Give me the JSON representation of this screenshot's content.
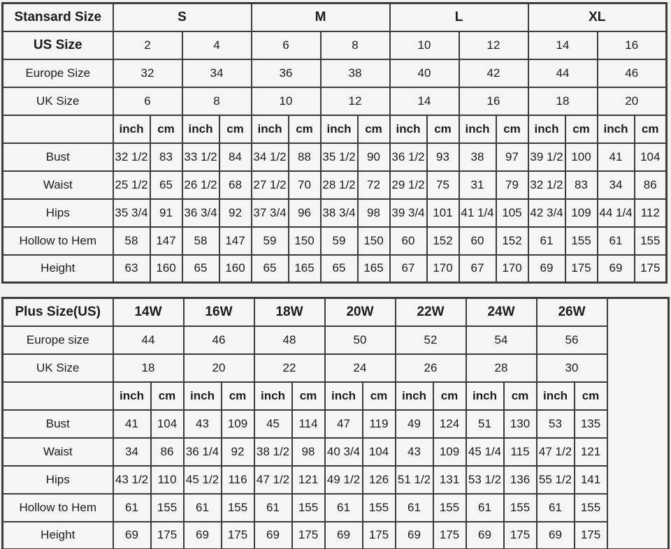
{
  "colors": {
    "border": "#3d3c3a",
    "paper": "#f1f0ed",
    "text": "#1c1c1c"
  },
  "standard_table": {
    "corner_label": "Stansard Size",
    "size_groups": [
      "S",
      "M",
      "L",
      "XL"
    ],
    "header_rows": [
      {
        "label": "US Size",
        "values": [
          "2",
          "4",
          "6",
          "8",
          "10",
          "12",
          "14",
          "16"
        ]
      },
      {
        "label": "Europe Size",
        "values": [
          "32",
          "34",
          "36",
          "38",
          "40",
          "42",
          "44",
          "46"
        ]
      },
      {
        "label": "UK Size",
        "values": [
          "6",
          "8",
          "10",
          "12",
          "14",
          "16",
          "18",
          "20"
        ]
      }
    ],
    "unit_row": {
      "inch": "inch",
      "cm": "cm"
    },
    "measure_rows": [
      {
        "label": "Bust",
        "pairs": [
          [
            "32 1/2",
            "83"
          ],
          [
            "33 1/2",
            "84"
          ],
          [
            "34 1/2",
            "88"
          ],
          [
            "35 1/2",
            "90"
          ],
          [
            "36 1/2",
            "93"
          ],
          [
            "38",
            "97"
          ],
          [
            "39 1/2",
            "100"
          ],
          [
            "41",
            "104"
          ]
        ]
      },
      {
        "label": "Waist",
        "pairs": [
          [
            "25 1/2",
            "65"
          ],
          [
            "26 1/2",
            "68"
          ],
          [
            "27 1/2",
            "70"
          ],
          [
            "28 1/2",
            "72"
          ],
          [
            "29 1/2",
            "75"
          ],
          [
            "31",
            "79"
          ],
          [
            "32 1/2",
            "83"
          ],
          [
            "34",
            "86"
          ]
        ]
      },
      {
        "label": "Hips",
        "pairs": [
          [
            "35 3/4",
            "91"
          ],
          [
            "36 3/4",
            "92"
          ],
          [
            "37 3/4",
            "96"
          ],
          [
            "38 3/4",
            "98"
          ],
          [
            "39 3/4",
            "101"
          ],
          [
            "41 1/4",
            "105"
          ],
          [
            "42 3/4",
            "109"
          ],
          [
            "44 1/4",
            "112"
          ]
        ]
      },
      {
        "label": "Hollow to Hem",
        "pairs": [
          [
            "58",
            "147"
          ],
          [
            "58",
            "147"
          ],
          [
            "59",
            "150"
          ],
          [
            "59",
            "150"
          ],
          [
            "60",
            "152"
          ],
          [
            "60",
            "152"
          ],
          [
            "61",
            "155"
          ],
          [
            "61",
            "155"
          ]
        ]
      },
      {
        "label": "Height",
        "pairs": [
          [
            "63",
            "160"
          ],
          [
            "65",
            "160"
          ],
          [
            "65",
            "165"
          ],
          [
            "65",
            "165"
          ],
          [
            "67",
            "170"
          ],
          [
            "67",
            "170"
          ],
          [
            "69",
            "175"
          ],
          [
            "69",
            "175"
          ]
        ]
      }
    ]
  },
  "plus_table": {
    "corner_label": "Plus Size(US)",
    "sizes": [
      "14W",
      "16W",
      "18W",
      "20W",
      "22W",
      "24W",
      "26W"
    ],
    "header_rows": [
      {
        "label": "Europe size",
        "values": [
          "44",
          "46",
          "48",
          "50",
          "52",
          "54",
          "56"
        ]
      },
      {
        "label": "UK Size",
        "values": [
          "18",
          "20",
          "22",
          "24",
          "26",
          "28",
          "30"
        ]
      }
    ],
    "unit_row": {
      "inch": "inch",
      "cm": "cm"
    },
    "measure_rows": [
      {
        "label": "Bust",
        "pairs": [
          [
            "41",
            "104"
          ],
          [
            "43",
            "109"
          ],
          [
            "45",
            "114"
          ],
          [
            "47",
            "119"
          ],
          [
            "49",
            "124"
          ],
          [
            "51",
            "130"
          ],
          [
            "53",
            "135"
          ]
        ]
      },
      {
        "label": "Waist",
        "pairs": [
          [
            "34",
            "86"
          ],
          [
            "36 1/4",
            "92"
          ],
          [
            "38 1/2",
            "98"
          ],
          [
            "40 3/4",
            "104"
          ],
          [
            "43",
            "109"
          ],
          [
            "45 1/4",
            "115"
          ],
          [
            "47 1/2",
            "121"
          ]
        ]
      },
      {
        "label": "Hips",
        "pairs": [
          [
            "43 1/2",
            "110"
          ],
          [
            "45 1/2",
            "116"
          ],
          [
            "47 1/2",
            "121"
          ],
          [
            "49 1/2",
            "126"
          ],
          [
            "51 1/2",
            "131"
          ],
          [
            "53 1/2",
            "136"
          ],
          [
            "55 1/2",
            "141"
          ]
        ]
      },
      {
        "label": "Hollow to Hem",
        "pairs": [
          [
            "61",
            "155"
          ],
          [
            "61",
            "155"
          ],
          [
            "61",
            "155"
          ],
          [
            "61",
            "155"
          ],
          [
            "61",
            "155"
          ],
          [
            "61",
            "155"
          ],
          [
            "61",
            "155"
          ]
        ]
      },
      {
        "label": "Height",
        "pairs": [
          [
            "69",
            "175"
          ],
          [
            "69",
            "175"
          ],
          [
            "69",
            "175"
          ],
          [
            "69",
            "175"
          ],
          [
            "69",
            "175"
          ],
          [
            "69",
            "175"
          ],
          [
            "69",
            "175"
          ]
        ]
      }
    ]
  }
}
